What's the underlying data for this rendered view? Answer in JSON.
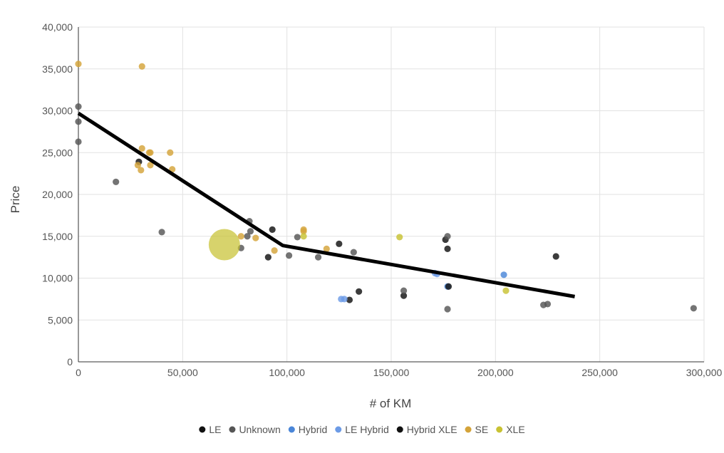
{
  "chart_data": {
    "type": "scatter",
    "xlabel": "# of KM",
    "ylabel": "Price",
    "xlim": [
      0,
      300000
    ],
    "ylim": [
      0,
      40000
    ],
    "x_ticks": [
      0,
      50000,
      100000,
      150000,
      200000,
      250000,
      300000
    ],
    "x_tick_labels": [
      "0",
      "50,000",
      "100,000",
      "150,000",
      "200,000",
      "250,000",
      "300,000"
    ],
    "y_ticks": [
      0,
      5000,
      10000,
      15000,
      20000,
      25000,
      30000,
      35000,
      40000
    ],
    "y_tick_labels": [
      "0",
      "5,000",
      "10,000",
      "15,000",
      "20,000",
      "25,000",
      "30,000",
      "35,000",
      "40,000"
    ],
    "grid": true,
    "legend_position": "bottom",
    "series": [
      {
        "name": "LE",
        "color": "#111111",
        "points": [
          {
            "x": 29000,
            "y": 23900
          },
          {
            "x": 91000,
            "y": 12500
          },
          {
            "x": 93000,
            "y": 15800
          },
          {
            "x": 125000,
            "y": 14100
          },
          {
            "x": 130000,
            "y": 7400
          },
          {
            "x": 134500,
            "y": 8400
          },
          {
            "x": 156000,
            "y": 7900
          },
          {
            "x": 176000,
            "y": 14600
          },
          {
            "x": 177000,
            "y": 13500
          },
          {
            "x": 229000,
            "y": 12600
          }
        ]
      },
      {
        "name": "Unknown",
        "color": "#555555",
        "points": [
          {
            "x": 0,
            "y": 30500
          },
          {
            "x": 0,
            "y": 28700
          },
          {
            "x": 0,
            "y": 26300
          },
          {
            "x": 18000,
            "y": 21500
          },
          {
            "x": 40000,
            "y": 15500
          },
          {
            "x": 78000,
            "y": 13600
          },
          {
            "x": 81000,
            "y": 15000
          },
          {
            "x": 82000,
            "y": 16800
          },
          {
            "x": 82500,
            "y": 15600
          },
          {
            "x": 101000,
            "y": 12700
          },
          {
            "x": 105000,
            "y": 14900
          },
          {
            "x": 115000,
            "y": 12500
          },
          {
            "x": 132000,
            "y": 13100
          },
          {
            "x": 156000,
            "y": 8500
          },
          {
            "x": 177000,
            "y": 15000
          },
          {
            "x": 177000,
            "y": 6300
          },
          {
            "x": 223000,
            "y": 6800
          },
          {
            "x": 225000,
            "y": 6900
          },
          {
            "x": 295000,
            "y": 6400
          }
        ]
      },
      {
        "name": "Hybrid",
        "color": "#4a86d8",
        "points": [
          {
            "x": 204000,
            "y": 10400
          },
          {
            "x": 177000,
            "y": 9000
          }
        ]
      },
      {
        "name": "LE Hybrid",
        "color": "#6c9be6",
        "points": [
          {
            "x": 126000,
            "y": 7500
          },
          {
            "x": 127500,
            "y": 7500
          },
          {
            "x": 171000,
            "y": 10600
          },
          {
            "x": 172000,
            "y": 10500
          }
        ]
      },
      {
        "name": "Hybrid XLE",
        "color": "#111111",
        "points": [
          {
            "x": 177500,
            "y": 9000
          }
        ]
      },
      {
        "name": "SE",
        "color": "#d4a339",
        "points": [
          {
            "x": 0,
            "y": 35600
          },
          {
            "x": 30500,
            "y": 35300
          },
          {
            "x": 30500,
            "y": 25500
          },
          {
            "x": 34000,
            "y": 25000
          },
          {
            "x": 34500,
            "y": 25000
          },
          {
            "x": 44000,
            "y": 25000
          },
          {
            "x": 28500,
            "y": 23500
          },
          {
            "x": 30000,
            "y": 22900
          },
          {
            "x": 34500,
            "y": 23500
          },
          {
            "x": 45000,
            "y": 23000
          },
          {
            "x": 78000,
            "y": 15000
          },
          {
            "x": 85000,
            "y": 14800
          },
          {
            "x": 94000,
            "y": 13300
          },
          {
            "x": 108000,
            "y": 15800
          },
          {
            "x": 108000,
            "y": 15600
          },
          {
            "x": 119000,
            "y": 13500
          }
        ]
      },
      {
        "name": "XLE",
        "color": "#c8c233",
        "points": [
          {
            "x": 70000,
            "y": 14000,
            "size": "large"
          },
          {
            "x": 108000,
            "y": 15000
          },
          {
            "x": 154000,
            "y": 14900
          },
          {
            "x": 205000,
            "y": 8500
          }
        ]
      }
    ],
    "trendline": {
      "color": "#000000",
      "points": [
        {
          "x": 0,
          "y": 29700
        },
        {
          "x": 98000,
          "y": 13900
        },
        {
          "x": 238000,
          "y": 7800
        }
      ]
    }
  }
}
